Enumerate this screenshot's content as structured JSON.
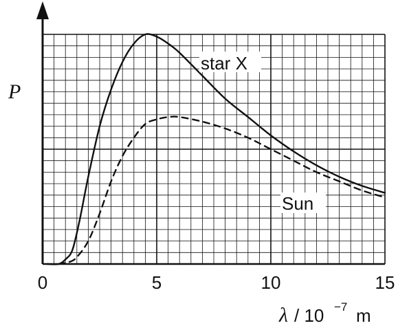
{
  "chart_data": {
    "type": "line",
    "title": "",
    "ylabel": "P",
    "xlabel_symbol": "λ",
    "xlabel_unit": "/ 10",
    "xlabel_exp": "−7",
    "xlabel_m": "m",
    "xlim": [
      0,
      15
    ],
    "ylim": [
      0,
      10
    ],
    "grid": true,
    "x_ticks": [
      "0",
      "5",
      "10",
      "15"
    ],
    "series": [
      {
        "name": "star X",
        "style": "solid",
        "x": [
          0.7,
          1.0,
          1.3,
          1.6,
          2.0,
          2.5,
          3.0,
          3.5,
          4.0,
          4.5,
          5.0,
          5.5,
          6.0,
          7.0,
          8.0,
          9.0,
          10.0,
          11.0,
          12.0,
          13.0,
          14.0,
          15.0
        ],
        "y": [
          0.0,
          0.2,
          0.6,
          1.8,
          3.8,
          6.0,
          7.6,
          8.8,
          9.6,
          10.0,
          9.9,
          9.6,
          9.2,
          8.2,
          7.2,
          6.4,
          5.6,
          4.9,
          4.3,
          3.8,
          3.4,
          3.1
        ]
      },
      {
        "name": "Sun",
        "style": "dashed",
        "x": [
          1.2,
          1.5,
          2.0,
          2.5,
          3.0,
          3.5,
          4.0,
          4.5,
          5.0,
          5.5,
          6.0,
          7.0,
          8.0,
          9.0,
          10.0,
          11.0,
          12.0,
          13.0,
          14.0,
          15.0
        ],
        "y": [
          0.1,
          0.3,
          1.0,
          2.2,
          3.6,
          4.7,
          5.5,
          6.1,
          6.3,
          6.4,
          6.4,
          6.2,
          5.9,
          5.5,
          5.0,
          4.5,
          4.0,
          3.6,
          3.2,
          2.9
        ]
      }
    ]
  }
}
